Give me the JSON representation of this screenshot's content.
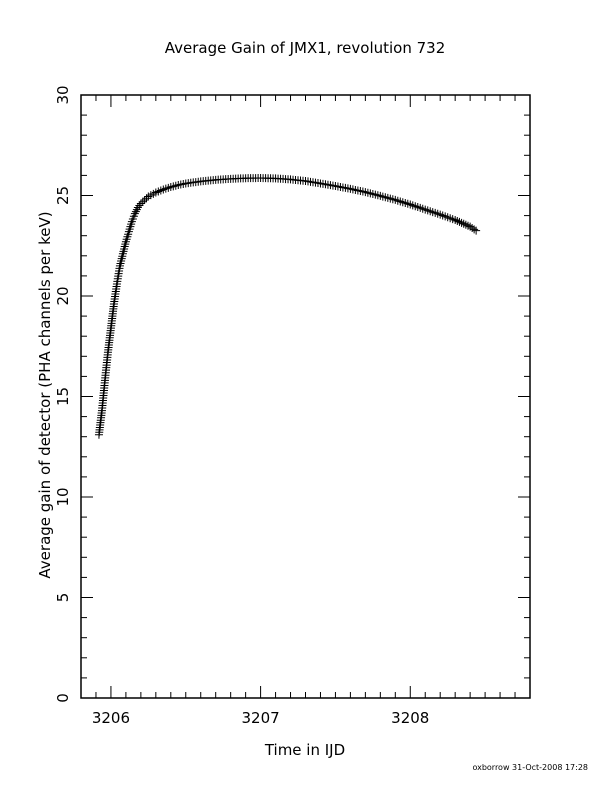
{
  "chart_data": {
    "type": "scatter",
    "title": "Average Gain of JMX1, revolution 732",
    "xlabel": "Time in IJD",
    "ylabel": "Average gain of detector (PHA channels per keV)",
    "xlim": [
      3205.8,
      3208.8
    ],
    "ylim": [
      0,
      30
    ],
    "x_ticks": [
      3206,
      3207,
      3208
    ],
    "x_tick_labels": [
      "3206",
      "3207",
      "3208"
    ],
    "y_ticks": [
      0,
      5,
      10,
      15,
      20,
      25,
      30
    ],
    "y_tick_labels": [
      "0",
      "5",
      "10",
      "15",
      "20",
      "25",
      "30"
    ],
    "grid": false,
    "marker": "plus",
    "color": "#000000",
    "series": [
      {
        "x": [
          3205.92,
          3205.94,
          3205.96,
          3205.98,
          3206.0,
          3206.02,
          3206.04,
          3206.06,
          3206.08,
          3206.1,
          3206.12,
          3206.14,
          3206.16,
          3206.18,
          3206.2,
          3206.25,
          3206.3,
          3206.35,
          3206.4,
          3206.45,
          3206.5,
          3206.6,
          3206.7,
          3206.8,
          3206.9,
          3207.0,
          3207.1,
          3207.2,
          3207.3,
          3207.4,
          3207.5,
          3207.6,
          3207.7,
          3207.8,
          3207.9,
          3208.0,
          3208.1,
          3208.2,
          3208.3,
          3208.4,
          3208.44
        ],
        "y": [
          13.1,
          14.3,
          15.8,
          17.2,
          18.4,
          19.6,
          20.6,
          21.5,
          22.1,
          22.7,
          23.2,
          23.7,
          24.1,
          24.4,
          24.6,
          24.95,
          25.15,
          25.3,
          25.42,
          25.52,
          25.6,
          25.7,
          25.78,
          25.83,
          25.86,
          25.87,
          25.85,
          25.8,
          25.72,
          25.6,
          25.47,
          25.33,
          25.17,
          24.98,
          24.78,
          24.55,
          24.3,
          24.05,
          23.78,
          23.45,
          23.25
        ]
      }
    ]
  },
  "footer": {
    "stamp": "oxborrow 31-Oct-2008 17:28"
  }
}
